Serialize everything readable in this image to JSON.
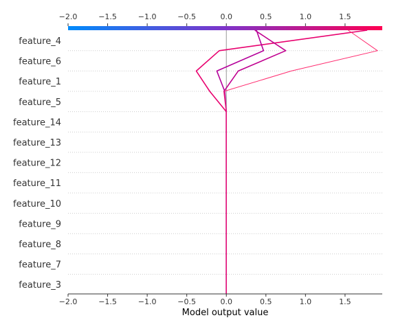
{
  "chart_data": {
    "type": "line",
    "plot_kind": "decision plot",
    "xlabel": "Model output value",
    "xlim": [
      -2.0,
      1.97
    ],
    "base_value": 0.0,
    "x_ticks": [
      -2.0,
      -1.5,
      -1.0,
      -0.5,
      0.0,
      0.5,
      1.0,
      1.5
    ],
    "x_tick_labels": [
      "−2.0",
      "−1.5",
      "−1.0",
      "−0.5",
      "0.0",
      "0.5",
      "1.0",
      "1.5"
    ],
    "features": [
      "feature_4",
      "feature_6",
      "feature_1",
      "feature_5",
      "feature_14",
      "feature_13",
      "feature_12",
      "feature_11",
      "feature_10",
      "feature_9",
      "feature_8",
      "feature_7",
      "feature_3"
    ],
    "grid": true,
    "colorbar": {
      "position": "top",
      "low_color": "#008bfb",
      "mid_color": "#7e33c9",
      "high_color": "#ff0052"
    },
    "series": [
      {
        "color": "#e8006e",
        "dashed": false,
        "values": [
          1.78,
          -0.09,
          -0.38,
          -0.21,
          0.0,
          0.0,
          0.0,
          0.0,
          0.0,
          0.0,
          0.0,
          0.0,
          0.0,
          0.0
        ]
      },
      {
        "color": "#c0008f",
        "dashed": false,
        "values": [
          0.36,
          0.75,
          0.15,
          -0.03,
          0.0,
          0.0,
          0.0,
          0.0,
          0.0,
          0.0,
          0.0,
          0.0,
          0.0,
          0.0
        ]
      },
      {
        "color": "#b4009a",
        "dashed": false,
        "values": [
          0.38,
          0.47,
          -0.12,
          -0.02,
          0.0,
          0.0,
          0.0,
          0.0,
          0.0,
          0.0,
          0.0,
          0.0,
          0.0,
          0.0
        ]
      },
      {
        "color": "#ff2a6e",
        "dashed": false,
        "thin": true,
        "values": [
          1.54,
          1.91,
          0.82,
          -0.03,
          0.0,
          0.0,
          0.0,
          0.0,
          0.0,
          0.0,
          0.0,
          0.0,
          0.0,
          0.0
        ]
      }
    ]
  }
}
